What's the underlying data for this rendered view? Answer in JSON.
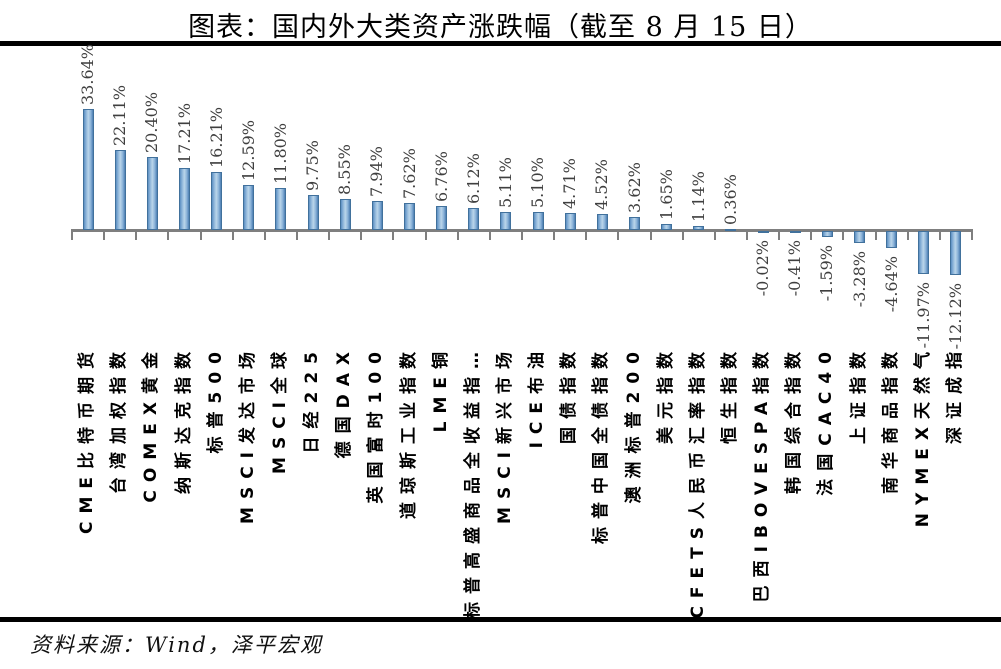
{
  "title": "图表：国内外大类资产涨跌幅（截至 8 月 15 日）",
  "source_note": "资料来源：Wind，泽平宏观",
  "chart_data": {
    "type": "bar",
    "title": "图表：国内外大类资产涨跌幅（截至 8 月 15 日）",
    "categories": [
      "CME比特币期货",
      "台湾加权指数",
      "COMEX黄金",
      "纳斯达克指数",
      "标普500",
      "MSCI发达市场",
      "MSCI全球",
      "日经225",
      "德国DAX",
      "英国富时100",
      "道琼斯工业指数",
      "LME铜",
      "标普高盛商品全收益指…",
      "MSCI新兴市场",
      "ICE布油",
      "国债指数",
      "标普中国全债指数",
      "澳洲标普200",
      "美元指数",
      "CFETS人民币汇率指数",
      "恒生指数",
      "巴西IBOVESPA指数",
      "韩国综合指数",
      "法国CAC40",
      "上证指数",
      "南华商品指数",
      "NYMEX天然气",
      "深证成指"
    ],
    "values": [
      33.64,
      22.11,
      20.4,
      17.21,
      16.21,
      12.59,
      11.8,
      9.75,
      8.55,
      7.94,
      7.62,
      6.76,
      6.12,
      5.11,
      5.1,
      4.71,
      4.52,
      3.62,
      1.65,
      1.14,
      0.36,
      -0.02,
      -0.41,
      -1.59,
      -3.28,
      -4.64,
      -11.97,
      -12.12
    ],
    "value_labels": [
      "33.64%",
      "22.11%",
      "20.40%",
      "17.21%",
      "16.21%",
      "12.59%",
      "11.80%",
      "9.75%",
      "8.55%",
      "7.94%",
      "7.62%",
      "6.76%",
      "6.12%",
      "5.11%",
      "5.10%",
      "4.71%",
      "4.52%",
      "3.62%",
      "1.65%",
      "1.14%",
      "0.36%",
      "-0.02%",
      "-0.41%",
      "-1.59%",
      "-3.28%",
      "-4.64%",
      "-11.97%",
      "-12.12%"
    ],
    "xlabel": "",
    "ylabel": "",
    "y_axis_visible": false,
    "grid": false,
    "legend": "none",
    "label_rotation_degrees": 90,
    "category_label_position": "low",
    "colors": {
      "bar_fill_edge": "#4d7fb4",
      "bar_fill_center": "#bad5ea",
      "bar_border": "#41719c",
      "axis": "#7f7f7f",
      "value_label": "#3f3f3f",
      "category_label": "#000000",
      "rule": "#000000"
    }
  }
}
